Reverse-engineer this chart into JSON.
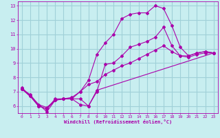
{
  "xlabel": "Windchill (Refroidissement éolien,°C)",
  "bg_color": "#c8eef0",
  "grid_color": "#a0d0d8",
  "line_color": "#aa00aa",
  "xlim": [
    -0.5,
    23.5
  ],
  "ylim": [
    5.5,
    13.3
  ],
  "yticks": [
    6,
    7,
    8,
    9,
    10,
    11,
    12,
    13
  ],
  "xticks": [
    0,
    1,
    2,
    3,
    4,
    5,
    6,
    7,
    8,
    9,
    10,
    11,
    12,
    13,
    14,
    15,
    16,
    17,
    18,
    19,
    20,
    21,
    22,
    23
  ],
  "line1_x": [
    0,
    1,
    2,
    3,
    4,
    5,
    6,
    7,
    8,
    9,
    10,
    11,
    12,
    13,
    14,
    15,
    16,
    17,
    18,
    19,
    20,
    21,
    22,
    23
  ],
  "line1_y": [
    7.3,
    6.7,
    6.0,
    5.8,
    6.4,
    6.5,
    6.5,
    7.0,
    7.8,
    9.6,
    10.4,
    11.0,
    12.1,
    12.4,
    12.5,
    12.5,
    13.0,
    12.8,
    11.6,
    10.1,
    9.5,
    9.7,
    9.8,
    9.7
  ],
  "line2_x": [
    0,
    1,
    2,
    3,
    4,
    5,
    6,
    7,
    8,
    9,
    10,
    11,
    12,
    13,
    14,
    15,
    16,
    17,
    18,
    19,
    20,
    21,
    22,
    23
  ],
  "line2_y": [
    7.2,
    6.7,
    6.0,
    5.8,
    6.5,
    6.5,
    6.5,
    6.1,
    6.0,
    7.0,
    8.9,
    9.0,
    9.5,
    10.1,
    10.3,
    10.5,
    10.8,
    11.5,
    10.2,
    9.5,
    9.5,
    9.7,
    9.8,
    9.7
  ],
  "line3_x": [
    0,
    1,
    2,
    3,
    4,
    5,
    6,
    7,
    8,
    9,
    10,
    11,
    12,
    13,
    14,
    15,
    16,
    17,
    18,
    19,
    20,
    21,
    22,
    23
  ],
  "line3_y": [
    7.2,
    6.8,
    6.1,
    5.9,
    6.4,
    6.5,
    6.6,
    7.0,
    7.5,
    7.7,
    8.2,
    8.5,
    8.8,
    9.0,
    9.3,
    9.6,
    9.9,
    10.2,
    9.8,
    9.5,
    9.4,
    9.6,
    9.7,
    9.7
  ],
  "line4_x": [
    0,
    3,
    4,
    5,
    6,
    7,
    8,
    9,
    23
  ],
  "line4_y": [
    7.2,
    5.6,
    6.4,
    6.5,
    6.5,
    6.5,
    6.0,
    7.1,
    9.7
  ]
}
